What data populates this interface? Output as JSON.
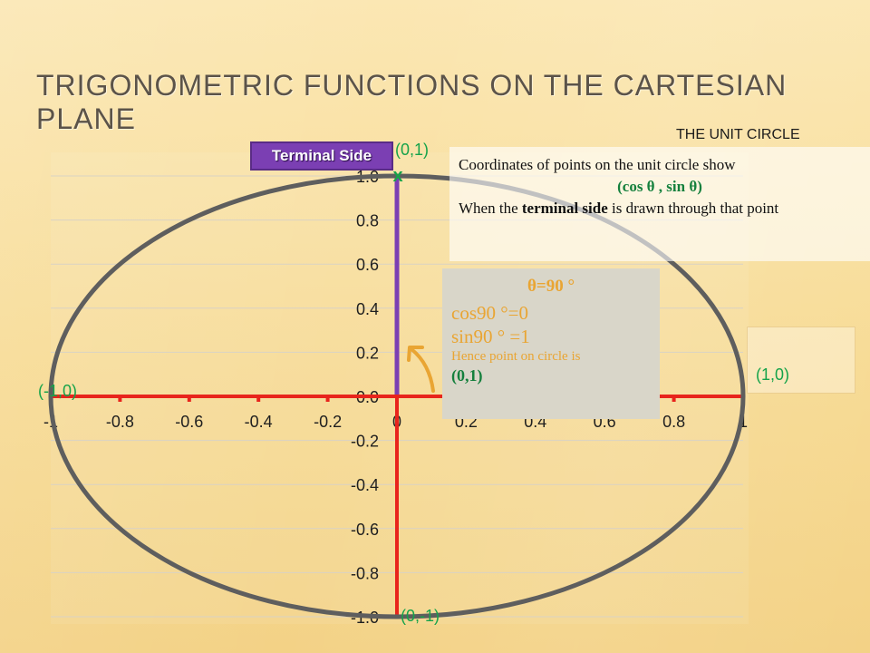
{
  "title": "TRIGONOMETRIC FUNCTIONS ON THE CARTESIAN PLANE",
  "unit_circle_label": "THE UNIT CIRCLE",
  "terminal_side_label": "Terminal Side",
  "info": {
    "line1": "Coordinates of points on the unit circle show",
    "formula": "(cos θ , sin θ)",
    "line3_pre": "When the ",
    "line3_bold": "terminal side",
    "line3_post": " is drawn through that point"
  },
  "angle": {
    "theta": "θ=90 °",
    "cos": "cos90 °=0",
    "sin": "sin90 ° =1",
    "hence": "Hence  point on circle is",
    "point": "(0,1)"
  },
  "point_labels": {
    "top": "(0,1)",
    "right": "(1,0)",
    "left": "(-1,0)",
    "bottom": "(0,-1)"
  },
  "colors": {
    "axis": "#e8241c",
    "terminal": "#7b3fb3",
    "circle": "#5e5e5e",
    "label_green": "#16a34a",
    "arrow": "#e9a533"
  },
  "chart_data": {
    "type": "scatter",
    "title": "",
    "xlabel": "",
    "ylabel": "",
    "xlim": [
      -1,
      1
    ],
    "ylim": [
      -1,
      1
    ],
    "x_ticks": [
      "-1",
      "-0.8",
      "-0.6",
      "-0.4",
      "-0.2",
      "0",
      "0.2",
      "0.4",
      "0.6",
      "0.8",
      "1"
    ],
    "y_ticks": [
      "1.0",
      "0.8",
      "0.6",
      "0.4",
      "0.2",
      "0.0",
      "-0.2",
      "-0.4",
      "-0.6",
      "-0.8",
      "-1.0"
    ],
    "grid": true,
    "circle": {
      "center": [
        0,
        0
      ],
      "radius": 1
    },
    "terminal_side": {
      "from": [
        0,
        0
      ],
      "to": [
        0,
        1
      ]
    },
    "marked_point": [
      0,
      1
    ]
  }
}
